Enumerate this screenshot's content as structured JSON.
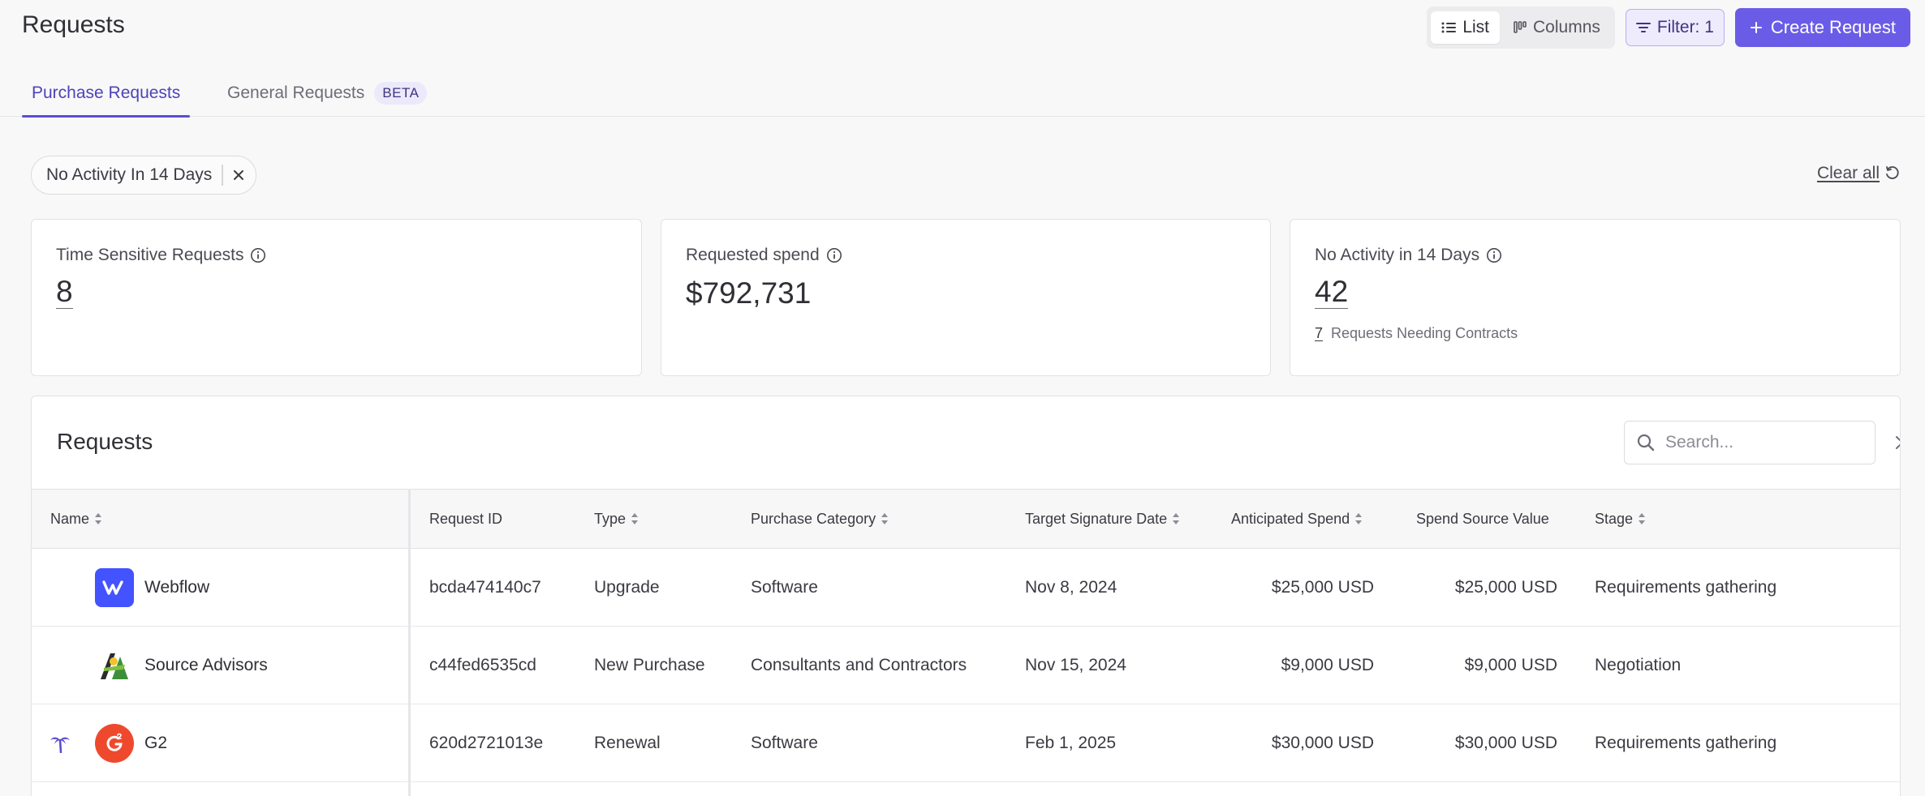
{
  "header": {
    "title": "Requests",
    "view_list_label": "List",
    "view_columns_label": "Columns",
    "filter_label": "Filter: 1",
    "create_label": "Create Request"
  },
  "tabs": [
    {
      "label": "Purchase Requests",
      "active": true
    },
    {
      "label": "General Requests",
      "badge": "BETA",
      "active": false
    }
  ],
  "filter_chip": {
    "label": "No Activity In 14 Days"
  },
  "clear_all_label": "Clear all",
  "cards": [
    {
      "label": "Time Sensitive Requests",
      "value": "8"
    },
    {
      "label": "Requested spend",
      "value": "$792,731"
    },
    {
      "label": "No Activity in 14 Days",
      "value": "42",
      "sub_count": "7",
      "sub_label": "Requests Needing Contracts"
    }
  ],
  "table": {
    "title": "Requests",
    "search_placeholder": "Search...",
    "columns": [
      "Name",
      "Request ID",
      "Type",
      "Purchase Category",
      "Target Signature Date",
      "Anticipated Spend",
      "Spend Source Value",
      "Stage"
    ],
    "rows": [
      {
        "name": "Webflow",
        "logo": "webflow-logo",
        "request_id": "bcda474140c7",
        "type": "Upgrade",
        "category": "Software",
        "target_date": "Nov 8, 2024",
        "anticipated_spend": "$25,000 USD",
        "spend_source_value": "$25,000 USD",
        "stage": "Requirements gathering"
      },
      {
        "name": "Source Advisors",
        "logo": "source-advisors-logo",
        "request_id": "c44fed6535cd",
        "type": "New Purchase",
        "category": "Consultants and Contractors",
        "target_date": "Nov 15, 2024",
        "anticipated_spend": "$9,000 USD",
        "spend_source_value": "$9,000 USD",
        "stage": "Negotiation"
      },
      {
        "name": "G2",
        "logo": "g2-logo",
        "flag_icon": "palm-tree-icon",
        "request_id": "620d2721013e",
        "type": "Renewal",
        "category": "Software",
        "target_date": "Feb 1, 2025",
        "anticipated_spend": "$30,000 USD",
        "spend_source_value": "$30,000 USD",
        "stage": "Requirements gathering"
      }
    ]
  },
  "colors": {
    "accent": "#6b5ce7",
    "tab_active": "#5b4fd0",
    "webflow": "#4353ff",
    "g2": "#ef492d"
  }
}
